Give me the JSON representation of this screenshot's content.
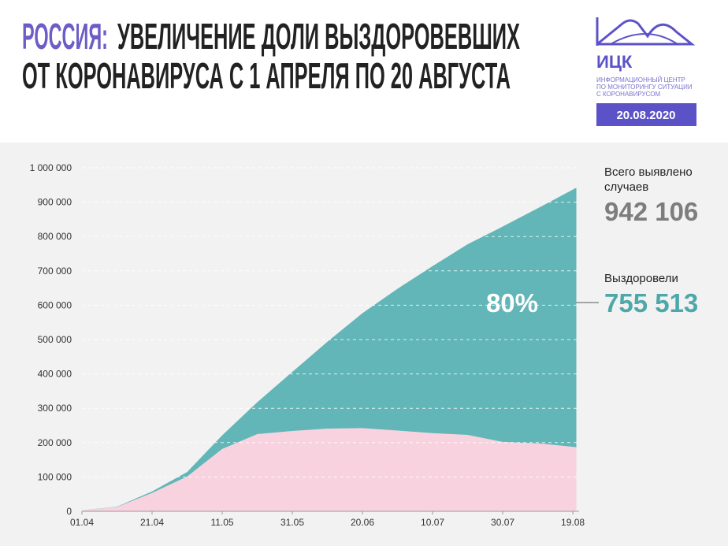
{
  "chart_data": {
    "type": "stacked_area",
    "title_highlight": "РОССИЯ:",
    "title_line1": "УВЕЛИЧЕНИЕ ДОЛИ ВЫЗДОРОВЕВШИХ",
    "title_line2": "ОТ КОРОНАВИРУСА С 1 АПРЕЛЯ ПО 20 АВГУСТА",
    "logo": {
      "name": "ИЦК",
      "line1": "ИНФОРМАЦИОННЫЙ ЦЕНТР",
      "line2": "ПО МОНИТОРИНГУ СИТУАЦИИ",
      "line3": "С КОРОНАВИРУСОМ",
      "date": "20.08.2020"
    },
    "x": [
      "01.04",
      "11.04",
      "21.04",
      "01.05",
      "11.05",
      "21.05",
      "31.05",
      "10.06",
      "20.06",
      "30.06",
      "10.07",
      "20.07",
      "30.07",
      "10.08",
      "20.08"
    ],
    "xlim": [
      "01.04",
      "20.08"
    ],
    "xticks": [
      "01.04",
      "21.04",
      "11.05",
      "31.05",
      "20.06",
      "10.07",
      "30.07",
      "19.08"
    ],
    "series": [
      {
        "color": "#f8d3df",
        "values": [
          2587,
          12539,
          53579,
          101211,
          181543,
          224873,
          233960,
          240874,
          242360,
          235199,
          227568,
          222491,
          201990,
          197329,
          186593
        ]
      },
      {
        "name": "Выздоровели",
        "color": "#62b6b7",
        "values": [
          190,
          1045,
          4420,
          13220,
          39801,
          92681,
          171883,
          252783,
          334592,
          412650,
          486368,
          554995,
          627000,
          690207,
          755513
        ]
      }
    ],
    "ylim": [
      0,
      1000000
    ],
    "yticks": [
      0,
      {
        "value": 100000,
        "label": "100 000"
      },
      {
        "value": 200000,
        "label": "200 000"
      },
      {
        "value": 300000,
        "label": "300 000"
      },
      {
        "value": 400000,
        "label": "400 000"
      },
      {
        "value": 500000,
        "label": "500 000"
      },
      {
        "value": 600000,
        "label": "600 000"
      },
      {
        "value": 700000,
        "label": "700 000"
      },
      {
        "value": 800000,
        "label": "800 000"
      },
      {
        "value": 900000,
        "label": "900 000"
      },
      {
        "value": 1000000,
        "label": "1 000 000"
      }
    ],
    "grid": true,
    "total_label": "Всего выявлено случаев",
    "total": {
      "value": 942106,
      "label": "942 106"
    },
    "recovered_label": "Выздоровели",
    "recovered": {
      "value": 755513,
      "label": "755 513"
    },
    "share": {
      "value": 80,
      "label": "80%"
    }
  }
}
